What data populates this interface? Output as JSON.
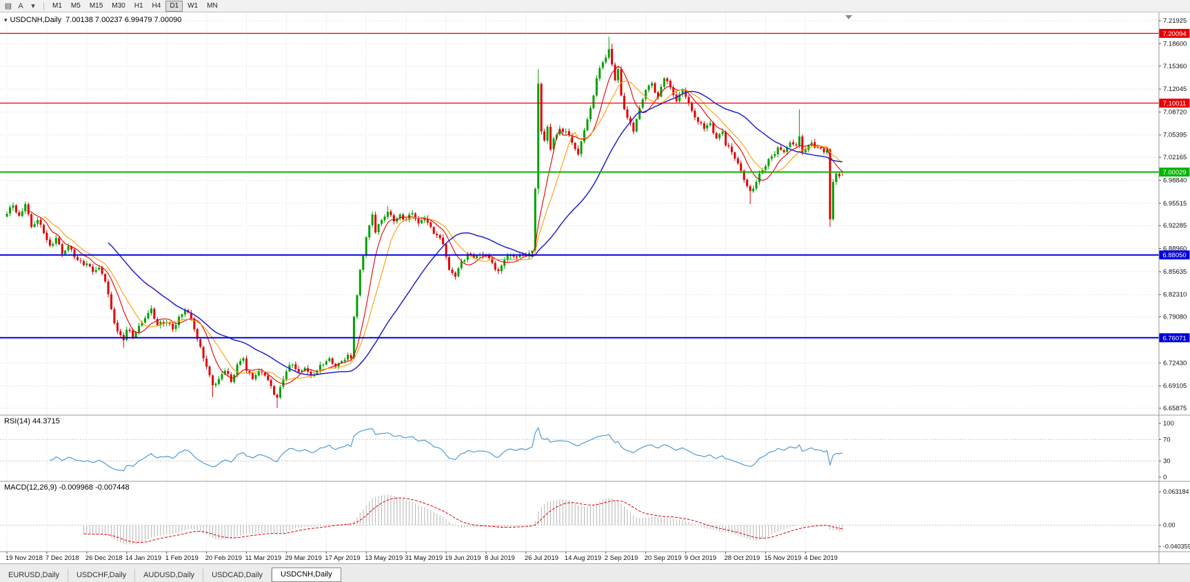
{
  "toolbar": {
    "left_icons": [
      {
        "name": "charts-grid-icon",
        "glyph": "▤"
      },
      {
        "name": "annotate-a-icon",
        "glyph": "A"
      },
      {
        "name": "templates-icon",
        "glyph": "▾"
      }
    ],
    "timeframes": [
      "M1",
      "M5",
      "M15",
      "M30",
      "H1",
      "H4",
      "D1",
      "W1",
      "MN"
    ],
    "active_timeframe": "D1"
  },
  "main_chart": {
    "window_icon": "▾",
    "symbol_title": "USDCNH,Daily",
    "ohlc_text": "7.00138 7.00237 6.99479 7.00090"
  },
  "rsi_panel": {
    "label": "RSI(14) 44.3715",
    "axis_labels": [
      "100",
      "70",
      "30",
      "0"
    ]
  },
  "macd_panel": {
    "label": "MACD(12,26,9) -0.009968 -0.007448",
    "axis_labels": [
      "0.063184",
      "0.00",
      "-0.040359"
    ]
  },
  "bottom_tabs": {
    "tabs": [
      "EURUSD,Daily",
      "USDCHF,Daily",
      "AUDUSD,Daily",
      "USDCAD,Daily",
      "USDCNH,Daily"
    ],
    "active": "USDCNH,Daily"
  },
  "chart_data": {
    "type": "candlestick",
    "symbol": "USDCNH",
    "period": "Daily",
    "y_ticks": [
      "7.21925",
      "7.18600",
      "7.15360",
      "7.12045",
      "7.08720",
      "7.05395",
      "7.02165",
      "6.98840",
      "6.95515",
      "6.92285",
      "6.88960",
      "6.85635",
      "6.82310",
      "6.79080",
      "6.75755",
      "6.72430",
      "6.69105",
      "6.65875"
    ],
    "x_labels": [
      "19 Nov 2018",
      "7 Dec 2018",
      "26 Dec 2018",
      "14 Jan 2019",
      "1 Feb 2019",
      "20 Feb 2019",
      "11 Mar 2019",
      "29 Mar 2019",
      "17 Apr 2019",
      "13 May 2019",
      "31 May 2019",
      "19 Jun 2019",
      "8 Jul 2019",
      "26 Jul 2019",
      "14 Aug 2019",
      "2 Sep 2019",
      "20 Sep 2019",
      "9 Oct 2019",
      "28 Oct 2019",
      "15 Nov 2019",
      "4 Dec 2019"
    ],
    "candles_per_x_label": 13,
    "candle_count": 273,
    "close_waypoints": [
      [
        0,
        6.94
      ],
      [
        2,
        6.952
      ],
      [
        4,
        6.937
      ],
      [
        6,
        6.954
      ],
      [
        8,
        6.921
      ],
      [
        10,
        6.931
      ],
      [
        12,
        6.912
      ],
      [
        14,
        6.894
      ],
      [
        16,
        6.905
      ],
      [
        18,
        6.882
      ],
      [
        20,
        6.893
      ],
      [
        23,
        6.873
      ],
      [
        26,
        6.868
      ],
      [
        28,
        6.856
      ],
      [
        30,
        6.862
      ],
      [
        32,
        6.842
      ],
      [
        34,
        6.802
      ],
      [
        36,
        6.77
      ],
      [
        38,
        6.757
      ],
      [
        39,
        6.772
      ],
      [
        41,
        6.761
      ],
      [
        43,
        6.778
      ],
      [
        45,
        6.789
      ],
      [
        47,
        6.803
      ],
      [
        49,
        6.779
      ],
      [
        52,
        6.783
      ],
      [
        54,
        6.773
      ],
      [
        56,
        6.791
      ],
      [
        58,
        6.801
      ],
      [
        60,
        6.789
      ],
      [
        62,
        6.759
      ],
      [
        64,
        6.731
      ],
      [
        65,
        6.719
      ],
      [
        67,
        6.692
      ],
      [
        69,
        6.701
      ],
      [
        71,
        6.713
      ],
      [
        73,
        6.697
      ],
      [
        75,
        6.722
      ],
      [
        77,
        6.731
      ],
      [
        78,
        6.713
      ],
      [
        80,
        6.701
      ],
      [
        82,
        6.713
      ],
      [
        84,
        6.706
      ],
      [
        86,
        6.691
      ],
      [
        88,
        6.674
      ],
      [
        90,
        6.701
      ],
      [
        91,
        6.712
      ],
      [
        93,
        6.722
      ],
      [
        95,
        6.711
      ],
      [
        97,
        6.717
      ],
      [
        99,
        6.706
      ],
      [
        101,
        6.713
      ],
      [
        103,
        6.722
      ],
      [
        105,
        6.731
      ],
      [
        107,
        6.719
      ],
      [
        109,
        6.727
      ],
      [
        111,
        6.736
      ],
      [
        112,
        6.731
      ],
      [
        113,
        6.791
      ],
      [
        114,
        6.822
      ],
      [
        115,
        6.859
      ],
      [
        116,
        6.879
      ],
      [
        117,
        6.906
      ],
      [
        118,
        6.923
      ],
      [
        119,
        6.939
      ],
      [
        120,
        6.913
      ],
      [
        122,
        6.931
      ],
      [
        124,
        6.943
      ],
      [
        126,
        6.929
      ],
      [
        128,
        6.939
      ],
      [
        130,
        6.931
      ],
      [
        132,
        6.941
      ],
      [
        134,
        6.926
      ],
      [
        136,
        6.933
      ],
      [
        138,
        6.921
      ],
      [
        140,
        6.909
      ],
      [
        142,
        6.896
      ],
      [
        144,
        6.859
      ],
      [
        146,
        6.849
      ],
      [
        148,
        6.871
      ],
      [
        150,
        6.883
      ],
      [
        152,
        6.876
      ],
      [
        154,
        6.881
      ],
      [
        156,
        6.879
      ],
      [
        158,
        6.869
      ],
      [
        160,
        6.857
      ],
      [
        162,
        6.873
      ],
      [
        164,
        6.881
      ],
      [
        166,
        6.877
      ],
      [
        168,
        6.881
      ],
      [
        170,
        6.883
      ],
      [
        171,
        6.886
      ],
      [
        172,
        6.976
      ],
      [
        173,
        7.128
      ],
      [
        174,
        7.059
      ],
      [
        175,
        7.046
      ],
      [
        176,
        7.066
      ],
      [
        177,
        7.033
      ],
      [
        178,
        7.049
      ],
      [
        180,
        7.063
      ],
      [
        182,
        7.059
      ],
      [
        184,
        7.043
      ],
      [
        186,
        7.026
      ],
      [
        188,
        7.061
      ],
      [
        190,
        7.093
      ],
      [
        192,
        7.136
      ],
      [
        194,
        7.159
      ],
      [
        195,
        7.166
      ],
      [
        196,
        7.178
      ],
      [
        197,
        7.156
      ],
      [
        198,
        7.133
      ],
      [
        199,
        7.149
      ],
      [
        200,
        7.111
      ],
      [
        202,
        7.079
      ],
      [
        204,
        7.059
      ],
      [
        206,
        7.093
      ],
      [
        208,
        7.119
      ],
      [
        210,
        7.129
      ],
      [
        212,
        7.109
      ],
      [
        214,
        7.136
      ],
      [
        216,
        7.123
      ],
      [
        218,
        7.103
      ],
      [
        220,
        7.119
      ],
      [
        221,
        7.109
      ],
      [
        223,
        7.089
      ],
      [
        225,
        7.073
      ],
      [
        227,
        7.063
      ],
      [
        229,
        7.071
      ],
      [
        231,
        7.049
      ],
      [
        233,
        7.059
      ],
      [
        234,
        7.039
      ],
      [
        236,
        7.029
      ],
      [
        238,
        7.013
      ],
      [
        240,
        6.989
      ],
      [
        242,
        6.973
      ],
      [
        244,
        6.986
      ],
      [
        246,
        7.003
      ],
      [
        247,
        7.009
      ],
      [
        249,
        7.023
      ],
      [
        251,
        7.036
      ],
      [
        253,
        7.029
      ],
      [
        255,
        7.043
      ],
      [
        257,
        7.039
      ],
      [
        258,
        7.052
      ],
      [
        259,
        7.029
      ],
      [
        260,
        7.033
      ],
      [
        262,
        7.043
      ],
      [
        264,
        7.036
      ],
      [
        266,
        7.029
      ],
      [
        267,
        7.033
      ],
      [
        268,
        6.932
      ],
      [
        269,
        6.986
      ],
      [
        270,
        6.998
      ],
      [
        271,
        6.994
      ],
      [
        272,
        7.0009
      ]
    ],
    "ohlc_overrides": {
      "38": {
        "l": 6.746
      },
      "67": {
        "l": 6.675
      },
      "88": {
        "l": 6.659
      },
      "124": {
        "h": 6.951
      },
      "173": {
        "h": 7.149,
        "l": 6.968
      },
      "196": {
        "h": 7.196
      },
      "197": {
        "h": 7.186
      },
      "242": {
        "l": 6.954
      },
      "258": {
        "h": 7.091
      },
      "268": {
        "l": 6.921
      },
      "272": {
        "o": 7.00138,
        "h": 7.00237,
        "l": 6.99479,
        "c": 7.0009
      }
    },
    "horizontal_lines": [
      {
        "value": 7.20094,
        "label": "7.20094",
        "color": "#e80000",
        "width": 1.3
      },
      {
        "value": 7.10011,
        "label": "7.10011",
        "color": "#e80000",
        "width": 1.3
      },
      {
        "value": 7.00029,
        "label": "7.00029",
        "color": "#00b400",
        "width": 2
      },
      {
        "value": 6.8805,
        "label": "6.88050",
        "color": "#0000dc",
        "width": 2
      },
      {
        "value": 6.76071,
        "label": "6.76071",
        "color": "#0000dc",
        "width": 2
      }
    ],
    "moving_averages": [
      {
        "period": 8,
        "color": "#dc0000",
        "width": 1.1
      },
      {
        "period": 13,
        "color": "#ff9c00",
        "width": 1.1
      },
      {
        "period": 34,
        "color": "#2020cc",
        "width": 1.5
      }
    ],
    "up_color": "#00a000",
    "down_color": "#e00000",
    "grid_color": "#d8d8d8",
    "rsi": {
      "period": 14,
      "color": "#4f9bd5",
      "levels": [
        70,
        30
      ]
    },
    "macd": {
      "fast": 12,
      "slow": 26,
      "signal": 9,
      "histogram_color": "#b4b4b4",
      "signal_color": "#e00000",
      "range": [
        0.07,
        -0.045
      ]
    }
  }
}
